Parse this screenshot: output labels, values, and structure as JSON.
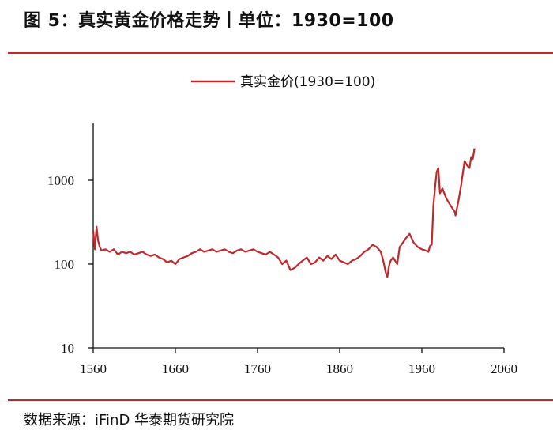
{
  "header": {
    "title": "图 5：真实黄金价格走势丨单位：1930=100"
  },
  "footer": {
    "source": "数据来源：iFinD   华泰期货研究院"
  },
  "colors": {
    "series": "#c0282b",
    "rule": "#c0282b",
    "axis": "#111111"
  },
  "chart_data": {
    "type": "line",
    "title": "图 5：真实黄金价格走势丨单位：1930=100",
    "xlabel": "",
    "ylabel": "",
    "y_scale": "log",
    "xlim": [
      1560,
      2060
    ],
    "ylim": [
      10,
      3000
    ],
    "x_ticks": [
      1560,
      1660,
      1760,
      1860,
      1960,
      2060
    ],
    "y_ticks": [
      10,
      100,
      1000
    ],
    "grid": false,
    "legend_position": "top-center",
    "series": [
      {
        "name": "真实金价(1930=100)",
        "color": "#c0282b",
        "x": [
          1560,
          1562,
          1564,
          1566,
          1568,
          1570,
          1575,
          1580,
          1585,
          1590,
          1595,
          1600,
          1605,
          1610,
          1615,
          1620,
          1625,
          1630,
          1635,
          1640,
          1645,
          1650,
          1655,
          1660,
          1665,
          1670,
          1675,
          1680,
          1685,
          1690,
          1695,
          1700,
          1705,
          1710,
          1715,
          1720,
          1725,
          1730,
          1735,
          1740,
          1745,
          1750,
          1755,
          1760,
          1765,
          1770,
          1775,
          1780,
          1785,
          1790,
          1795,
          1800,
          1805,
          1810,
          1815,
          1820,
          1825,
          1830,
          1835,
          1840,
          1845,
          1850,
          1855,
          1860,
          1865,
          1870,
          1875,
          1880,
          1885,
          1890,
          1895,
          1900,
          1905,
          1910,
          1913,
          1916,
          1918,
          1920,
          1922,
          1925,
          1930,
          1933,
          1935,
          1940,
          1945,
          1950,
          1955,
          1960,
          1965,
          1968,
          1970,
          1972,
          1974,
          1976,
          1978,
          1980,
          1982,
          1985,
          1990,
          1995,
          2000,
          2001,
          2005,
          2008,
          2010,
          2012,
          2015,
          2018,
          2020,
          2022,
          2024
        ],
        "values": [
          250,
          150,
          280,
          190,
          160,
          145,
          150,
          140,
          150,
          130,
          140,
          135,
          140,
          130,
          135,
          140,
          130,
          125,
          130,
          120,
          115,
          105,
          110,
          100,
          115,
          120,
          125,
          135,
          140,
          150,
          140,
          145,
          150,
          140,
          145,
          150,
          140,
          135,
          145,
          150,
          140,
          145,
          150,
          140,
          135,
          130,
          140,
          130,
          120,
          100,
          110,
          85,
          90,
          100,
          110,
          120,
          100,
          105,
          120,
          110,
          125,
          115,
          130,
          110,
          105,
          100,
          110,
          115,
          125,
          140,
          150,
          170,
          160,
          140,
          110,
          80,
          70,
          95,
          110,
          120,
          100,
          160,
          170,
          200,
          230,
          180,
          160,
          150,
          145,
          140,
          165,
          170,
          500,
          800,
          1250,
          1400,
          700,
          800,
          600,
          500,
          420,
          380,
          600,
          900,
          1250,
          1700,
          1500,
          1400,
          1900,
          1800,
          2400
        ]
      }
    ]
  }
}
